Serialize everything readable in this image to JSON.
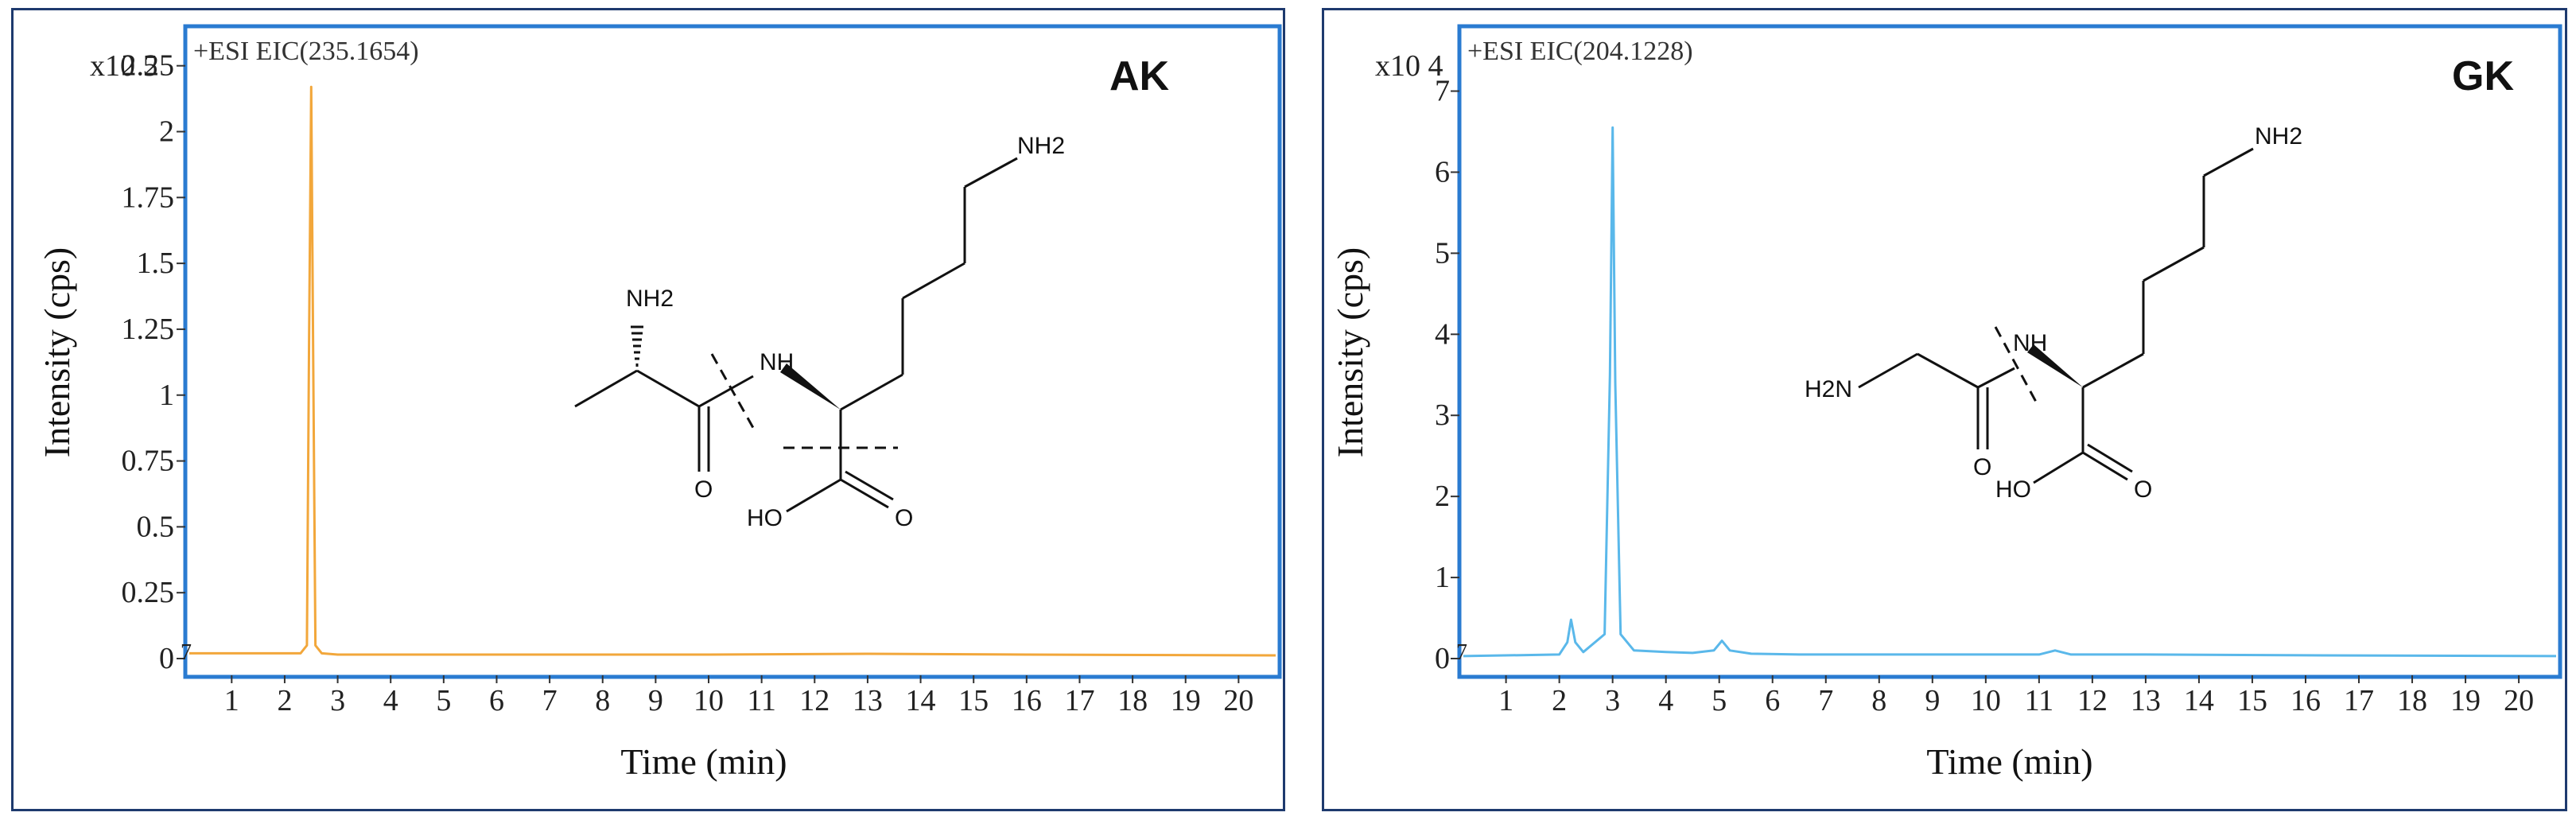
{
  "chart_data": [
    {
      "type": "line",
      "label": "AK",
      "trace_label": "+ESI  EIC(235.1654)",
      "scale_label": "x10 5",
      "ylabel": "Intensity (cps)",
      "xlabel": "Time (min)",
      "xlim": [
        0.2,
        20.7
      ],
      "ylim": [
        0,
        2.4
      ],
      "xticks": [
        "1",
        "2",
        "3",
        "4",
        "5",
        "6",
        "7",
        "8",
        "9",
        "10",
        "11",
        "12",
        "13",
        "14",
        "15",
        "16",
        "17",
        "18",
        "19",
        "20"
      ],
      "yticks": [
        "0",
        "0.25",
        "0.5",
        "0.75",
        "1",
        "1.25",
        "1.5",
        "1.75",
        "2",
        "2.25"
      ],
      "ytick_values": [
        0,
        0.25,
        0.5,
        0.75,
        1,
        1.25,
        1.5,
        1.75,
        2,
        2.25
      ],
      "corner_mark": "7",
      "series": [
        {
          "color": "#f2a73b",
          "x": [
            0.2,
            2.0,
            2.3,
            2.42,
            2.46,
            2.5,
            2.54,
            2.58,
            2.7,
            3.0,
            6.0,
            10.0,
            13.0,
            16.0,
            20.7
          ],
          "y": [
            0.02,
            0.02,
            0.02,
            0.05,
            1.2,
            2.17,
            1.1,
            0.05,
            0.02,
            0.015,
            0.015,
            0.015,
            0.018,
            0.015,
            0.012
          ]
        }
      ],
      "structure": {
        "labels": [
          "NH2",
          "NH",
          "NH2",
          "O",
          "HO",
          "O"
        ]
      }
    },
    {
      "type": "line",
      "label": "GK",
      "trace_label": "+ESI  EIC(204.1228)",
      "scale_label": "x10 4",
      "ylabel": "Intensity (cps)",
      "xlabel": "Time (min)",
      "xlim": [
        0.2,
        20.7
      ],
      "ylim": [
        0,
        7.8
      ],
      "xticks": [
        "1",
        "2",
        "3",
        "4",
        "5",
        "6",
        "7",
        "8",
        "9",
        "10",
        "11",
        "12",
        "13",
        "14",
        "15",
        "16",
        "17",
        "18",
        "19",
        "20"
      ],
      "yticks": [
        "0",
        "1",
        "2",
        "3",
        "4",
        "5",
        "6",
        "7"
      ],
      "ytick_values": [
        0,
        1,
        2,
        3,
        4,
        5,
        6,
        7
      ],
      "corner_mark": "7",
      "series": [
        {
          "color": "#5ab8ea",
          "x": [
            0.2,
            2.0,
            2.15,
            2.22,
            2.3,
            2.45,
            2.85,
            2.95,
            3.0,
            3.05,
            3.15,
            3.4,
            4.0,
            4.5,
            4.9,
            5.05,
            5.2,
            5.6,
            6.5,
            11.0,
            11.3,
            11.6,
            13.0,
            16.0,
            20.7
          ],
          "y": [
            0.03,
            0.05,
            0.2,
            0.48,
            0.2,
            0.08,
            0.3,
            3.5,
            6.55,
            3.4,
            0.3,
            0.1,
            0.08,
            0.07,
            0.1,
            0.22,
            0.1,
            0.06,
            0.05,
            0.05,
            0.1,
            0.05,
            0.05,
            0.04,
            0.03
          ]
        }
      ],
      "structure": {
        "labels": [
          "NH2",
          "NH",
          "H2N",
          "O",
          "HO",
          "O"
        ]
      }
    }
  ]
}
